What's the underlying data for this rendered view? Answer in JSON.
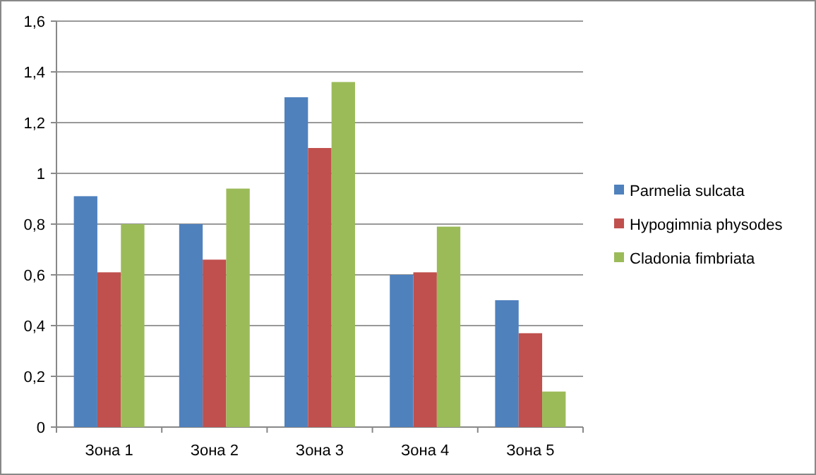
{
  "chart_data": {
    "type": "bar",
    "categories": [
      "Зона 1",
      "Зона 2",
      "Зона 3",
      "Зона 4",
      "Зона 5"
    ],
    "series": [
      {
        "name": "Parmelia sulcata",
        "color": "#4f81bd",
        "values": [
          0.91,
          0.8,
          1.3,
          0.6,
          0.5
        ]
      },
      {
        "name": "Hypogimnia physodes",
        "color": "#c0504d",
        "values": [
          0.61,
          0.66,
          1.1,
          0.61,
          0.37
        ]
      },
      {
        "name": "Cladonia fimbriata",
        "color": "#9bbb59",
        "values": [
          0.8,
          0.94,
          1.36,
          0.79,
          0.14
        ]
      }
    ],
    "ylim": [
      0,
      1.6
    ],
    "yticks": [
      0,
      {
        "value": 0.2,
        "label": "0,2"
      },
      {
        "value": 0.4,
        "label": "0,4"
      },
      {
        "value": 0.6,
        "label": "0,6"
      },
      {
        "value": 0.8,
        "label": "0,8"
      },
      1,
      {
        "value": 1.2,
        "label": "1,2"
      },
      {
        "value": 1.4,
        "label": "1,4"
      },
      {
        "value": 1.6,
        "label": "1,6"
      }
    ],
    "grid": "y",
    "legend": "right"
  }
}
